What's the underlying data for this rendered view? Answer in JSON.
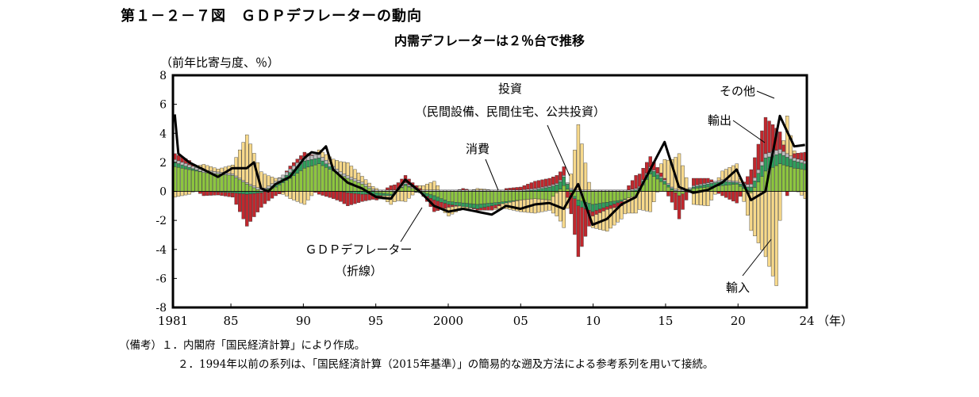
{
  "figure": {
    "title": "第１－２－７図　ＧＤＰデフレーターの動向",
    "subtitle": "内需デフレーターは２％台で推移"
  },
  "chart_data": {
    "type": "bar",
    "stacked": true,
    "frequency": "quarterly",
    "x_tick_labels": [
      "1981",
      "85",
      "90",
      "95",
      "2000",
      "05",
      "10",
      "15",
      "20",
      "24"
    ],
    "x_unit_label": "（年）",
    "y_unit_label": "（前年比寄与度、％）",
    "ylim": [
      -8,
      8
    ],
    "y_ticks": [
      8,
      6,
      4,
      2,
      0,
      -2,
      -4,
      -6,
      -8
    ],
    "x_range": [
      1981.0,
      2024.75
    ],
    "series_colors": {
      "consumption": "#8dc63f",
      "investment": "#2e9e5b",
      "other": "#bfbfbf",
      "exports": "#c1272d",
      "imports": "#f7d98b",
      "deflator": "#000000"
    },
    "annotations": {
      "investment": [
        "投資",
        "（民間設備、民間住宅、公共投資）"
      ],
      "consumption": "消費",
      "other": "その他",
      "exports": "輸出",
      "imports": "輸入",
      "deflator": [
        "ＧＤＰデフレーター",
        "（折線）"
      ]
    },
    "anchors": {
      "consumption": [
        [
          1981,
          1.7
        ],
        [
          1983,
          1.3
        ],
        [
          1985,
          1.1
        ],
        [
          1986,
          0.5
        ],
        [
          1987,
          0.0
        ],
        [
          1988,
          0.3
        ],
        [
          1989,
          0.9
        ],
        [
          1990,
          1.6
        ],
        [
          1991,
          1.9
        ],
        [
          1992,
          1.4
        ],
        [
          1993,
          0.9
        ],
        [
          1994,
          0.5
        ],
        [
          1995,
          -0.1
        ],
        [
          1996,
          -0.2
        ],
        [
          1997,
          0.4
        ],
        [
          1998,
          0.0
        ],
        [
          1999,
          -0.3
        ],
        [
          2000,
          -0.7
        ],
        [
          2002,
          -0.9
        ],
        [
          2004,
          -0.7
        ],
        [
          2006,
          -0.5
        ],
        [
          2007,
          -0.6
        ],
        [
          2008,
          0.4
        ],
        [
          2009,
          -0.6
        ],
        [
          2010,
          -0.9
        ],
        [
          2012,
          -0.6
        ],
        [
          2013,
          -0.3
        ],
        [
          2014,
          1.2
        ],
        [
          2015,
          0.5
        ],
        [
          2016,
          -0.3
        ],
        [
          2017,
          0.2
        ],
        [
          2018,
          0.3
        ],
        [
          2019,
          0.4
        ],
        [
          2020,
          0.5
        ],
        [
          2021,
          -0.1
        ],
        [
          2022,
          1.4
        ],
        [
          2023,
          1.9
        ],
        [
          2024,
          1.6
        ],
        [
          2024.75,
          1.5
        ]
      ],
      "investment": [
        [
          1981,
          0.3
        ],
        [
          1983,
          0.0
        ],
        [
          1985,
          -0.1
        ],
        [
          1986,
          -0.2
        ],
        [
          1987,
          -0.1
        ],
        [
          1988,
          0.2
        ],
        [
          1989,
          0.4
        ],
        [
          1990,
          0.5
        ],
        [
          1991,
          0.4
        ],
        [
          1992,
          0.1
        ],
        [
          1993,
          -0.1
        ],
        [
          1994,
          -0.2
        ],
        [
          1995,
          -0.2
        ],
        [
          1996,
          -0.1
        ],
        [
          1997,
          0.1
        ],
        [
          1998,
          -0.1
        ],
        [
          1999,
          -0.3
        ],
        [
          2000,
          -0.2
        ],
        [
          2002,
          -0.3
        ],
        [
          2004,
          -0.1
        ],
        [
          2006,
          0.1
        ],
        [
          2007,
          0.3
        ],
        [
          2008,
          0.6
        ],
        [
          2009,
          -0.4
        ],
        [
          2010,
          -0.5
        ],
        [
          2012,
          -0.1
        ],
        [
          2013,
          0.1
        ],
        [
          2014,
          0.4
        ],
        [
          2015,
          0.2
        ],
        [
          2016,
          0.0
        ],
        [
          2017,
          0.1
        ],
        [
          2018,
          0.2
        ],
        [
          2019,
          0.3
        ],
        [
          2020,
          0.1
        ],
        [
          2021,
          0.3
        ],
        [
          2022,
          0.9
        ],
        [
          2023,
          0.7
        ],
        [
          2024,
          0.5
        ],
        [
          2024.75,
          0.4
        ]
      ],
      "other": [
        [
          1981,
          0.2
        ],
        [
          1986,
          0.1
        ],
        [
          1990,
          0.3
        ],
        [
          1995,
          0.1
        ],
        [
          2000,
          0.1
        ],
        [
          2005,
          0.1
        ],
        [
          2010,
          0.1
        ],
        [
          2015,
          0.1
        ],
        [
          2020,
          0.1
        ],
        [
          2022,
          0.3
        ],
        [
          2023,
          0.3
        ],
        [
          2024,
          0.2
        ],
        [
          2024.75,
          0.2
        ]
      ],
      "exports": [
        [
          1981,
          0.4
        ],
        [
          1982,
          0.3
        ],
        [
          1983,
          -0.3
        ],
        [
          1984,
          -0.2
        ],
        [
          1985,
          -0.3
        ],
        [
          1986,
          -2.2
        ],
        [
          1987,
          -1.0
        ],
        [
          1988,
          -0.3
        ],
        [
          1989,
          0.2
        ],
        [
          1990,
          0.3
        ],
        [
          1991,
          -0.2
        ],
        [
          1992,
          -0.5
        ],
        [
          1993,
          -0.9
        ],
        [
          1994,
          -0.5
        ],
        [
          1995,
          -0.3
        ],
        [
          1996,
          0.3
        ],
        [
          1997,
          0.5
        ],
        [
          1998,
          0.1
        ],
        [
          1999,
          -0.8
        ],
        [
          2000,
          -0.2
        ],
        [
          2001,
          0.1
        ],
        [
          2002,
          -0.1
        ],
        [
          2003,
          -0.3
        ],
        [
          2004,
          0.1
        ],
        [
          2005,
          0.2
        ],
        [
          2006,
          0.5
        ],
        [
          2007,
          0.5
        ],
        [
          2008,
          0.6
        ],
        [
          2009,
          -3.5
        ],
        [
          2010,
          -0.3
        ],
        [
          2011,
          -0.2
        ],
        [
          2012,
          -0.3
        ],
        [
          2013,
          0.9
        ],
        [
          2014,
          0.7
        ],
        [
          2015,
          0.1
        ],
        [
          2016,
          -1.6
        ],
        [
          2017,
          0.5
        ],
        [
          2018,
          0.3
        ],
        [
          2019,
          -0.3
        ],
        [
          2020,
          -0.8
        ],
        [
          2021,
          1.0
        ],
        [
          2022,
          2.5
        ],
        [
          2023,
          1.2
        ],
        [
          2023.5,
          -0.3
        ],
        [
          2024,
          0.3
        ],
        [
          2024.75,
          0.6
        ]
      ],
      "imports": [
        [
          1981,
          -0.4
        ],
        [
          1982,
          -0.2
        ],
        [
          1983,
          0.4
        ],
        [
          1984,
          0.2
        ],
        [
          1985,
          0.6
        ],
        [
          1986,
          3.3
        ],
        [
          1987,
          1.2
        ],
        [
          1988,
          0.2
        ],
        [
          1989,
          -0.5
        ],
        [
          1990,
          -0.9
        ],
        [
          1991,
          0.3
        ],
        [
          1992,
          0.5
        ],
        [
          1993,
          0.9
        ],
        [
          1994,
          0.4
        ],
        [
          1995,
          0.1
        ],
        [
          1996,
          -0.6
        ],
        [
          1997,
          -0.7
        ],
        [
          1998,
          0.2
        ],
        [
          1999,
          0.6
        ],
        [
          2000,
          -0.6
        ],
        [
          2001,
          -0.2
        ],
        [
          2002,
          0.1
        ],
        [
          2003,
          0.0
        ],
        [
          2004,
          -0.4
        ],
        [
          2005,
          -0.8
        ],
        [
          2006,
          -1.0
        ],
        [
          2007,
          -0.7
        ],
        [
          2008,
          -2.5
        ],
        [
          2009,
          4.5
        ],
        [
          2010,
          -0.8
        ],
        [
          2011,
          -1.5
        ],
        [
          2012,
          -0.9
        ],
        [
          2013,
          -1.2
        ],
        [
          2014,
          -1.4
        ],
        [
          2015,
          1.3
        ],
        [
          2016,
          2.5
        ],
        [
          2017,
          -0.9
        ],
        [
          2018,
          -1.0
        ],
        [
          2019,
          0.6
        ],
        [
          2020,
          1.2
        ],
        [
          2021,
          -2.6
        ],
        [
          2022,
          -4.5
        ],
        [
          2022.75,
          -6.5
        ],
        [
          2023,
          -2.0
        ],
        [
          2023.5,
          2.6
        ],
        [
          2024,
          0.2
        ],
        [
          2024.75,
          -0.5
        ]
      ],
      "deflator": [
        [
          1981,
          5.3
        ],
        [
          1981.25,
          2.6
        ],
        [
          1982,
          2.0
        ],
        [
          1983,
          1.5
        ],
        [
          1984,
          1.0
        ],
        [
          1985,
          1.6
        ],
        [
          1986,
          1.6
        ],
        [
          1986.5,
          2.0
        ],
        [
          1987,
          0.2
        ],
        [
          1987.5,
          0.0
        ],
        [
          1988,
          0.5
        ],
        [
          1989,
          1.0
        ],
        [
          1990,
          2.3
        ],
        [
          1990.5,
          2.7
        ],
        [
          1991,
          2.6
        ],
        [
          1991.5,
          3.1
        ],
        [
          1992,
          1.5
        ],
        [
          1993,
          0.6
        ],
        [
          1994,
          0.2
        ],
        [
          1995,
          -0.4
        ],
        [
          1996,
          -0.5
        ],
        [
          1997,
          0.8
        ],
        [
          1998,
          0.0
        ],
        [
          1999,
          -1.0
        ],
        [
          2000,
          -1.4
        ],
        [
          2001,
          -1.2
        ],
        [
          2002,
          -1.4
        ],
        [
          2003,
          -1.6
        ],
        [
          2004,
          -1.0
        ],
        [
          2005,
          -1.2
        ],
        [
          2006,
          -0.9
        ],
        [
          2007,
          -0.8
        ],
        [
          2008,
          -1.2
        ],
        [
          2009,
          0.5
        ],
        [
          2010,
          -2.3
        ],
        [
          2011,
          -1.9
        ],
        [
          2012,
          -0.9
        ],
        [
          2013,
          -0.4
        ],
        [
          2014,
          1.5
        ],
        [
          2015,
          3.4
        ],
        [
          2016,
          0.3
        ],
        [
          2017,
          -0.1
        ],
        [
          2018,
          0.1
        ],
        [
          2019,
          0.6
        ],
        [
          2020,
          1.5
        ],
        [
          2021,
          -0.6
        ],
        [
          2022,
          0.0
        ],
        [
          2023,
          5.2
        ],
        [
          2024,
          3.1
        ],
        [
          2024.75,
          3.2
        ]
      ]
    }
  },
  "notes": {
    "line1": "（備考）１．内閣府「国民経済計算」により作成。",
    "line2": "２．1994年以前の系列は、「国民経済計算（2015年基準）」の簡易的な遡及方法による参考系列を用いて接続。"
  }
}
